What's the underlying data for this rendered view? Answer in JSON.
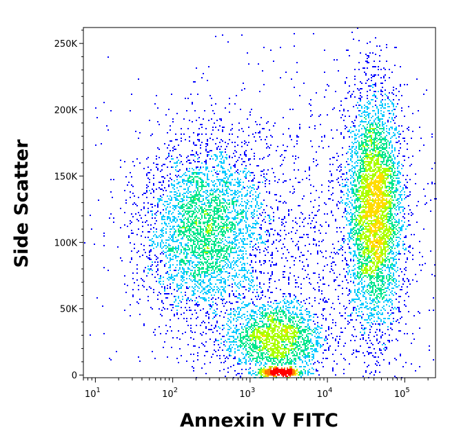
{
  "chart_data": {
    "type": "scatter",
    "subtype": "flow-cytometry-density-dot-plot",
    "xlabel": "Annexin V FITC",
    "ylabel": "Side Scatter",
    "x_scale": "log",
    "xlim": [
      7,
      250000
    ],
    "ylim": [
      -2000,
      262000
    ],
    "x_ticks": [
      {
        "value": 10,
        "base": "10",
        "exp": "1"
      },
      {
        "value": 100,
        "base": "10",
        "exp": "2"
      },
      {
        "value": 1000,
        "base": "10",
        "exp": "3"
      },
      {
        "value": 10000,
        "base": "10",
        "exp": "4"
      },
      {
        "value": 100000,
        "base": "10",
        "exp": "5"
      }
    ],
    "y_ticks": [
      {
        "value": 0,
        "label": "0"
      },
      {
        "value": 50000,
        "label": "50K"
      },
      {
        "value": 100000,
        "label": "100K"
      },
      {
        "value": 150000,
        "label": "150K"
      },
      {
        "value": 200000,
        "label": "200K"
      },
      {
        "value": 250000,
        "label": "250K"
      }
    ],
    "grid": false,
    "legend": "none",
    "density_colors": [
      "#0000ff",
      "#00c8ff",
      "#00e68c",
      "#aaff00",
      "#ffdc00",
      "#ff7800",
      "#ff0000"
    ],
    "populations": [
      {
        "x_center": 250,
        "x_spread_decades": 0.4,
        "y_center": 110000,
        "y_spread": 32000,
        "weight": 0.28
      },
      {
        "x_center": 40000,
        "x_spread_decades": 0.18,
        "y_center": 125000,
        "y_spread": 45000,
        "weight": 0.36
      },
      {
        "x_center": 2000,
        "x_spread_decades": 0.32,
        "y_center": 28000,
        "y_spread": 14000,
        "weight": 0.16
      },
      {
        "x_center": 2500,
        "x_spread_decades": 0.15,
        "y_center": 2500,
        "y_spread": 1200,
        "weight": 0.04
      },
      {
        "x_center": 3000,
        "x_spread_decades": 1.1,
        "y_center": 90000,
        "y_spread": 70000,
        "weight": 0.16
      }
    ]
  }
}
